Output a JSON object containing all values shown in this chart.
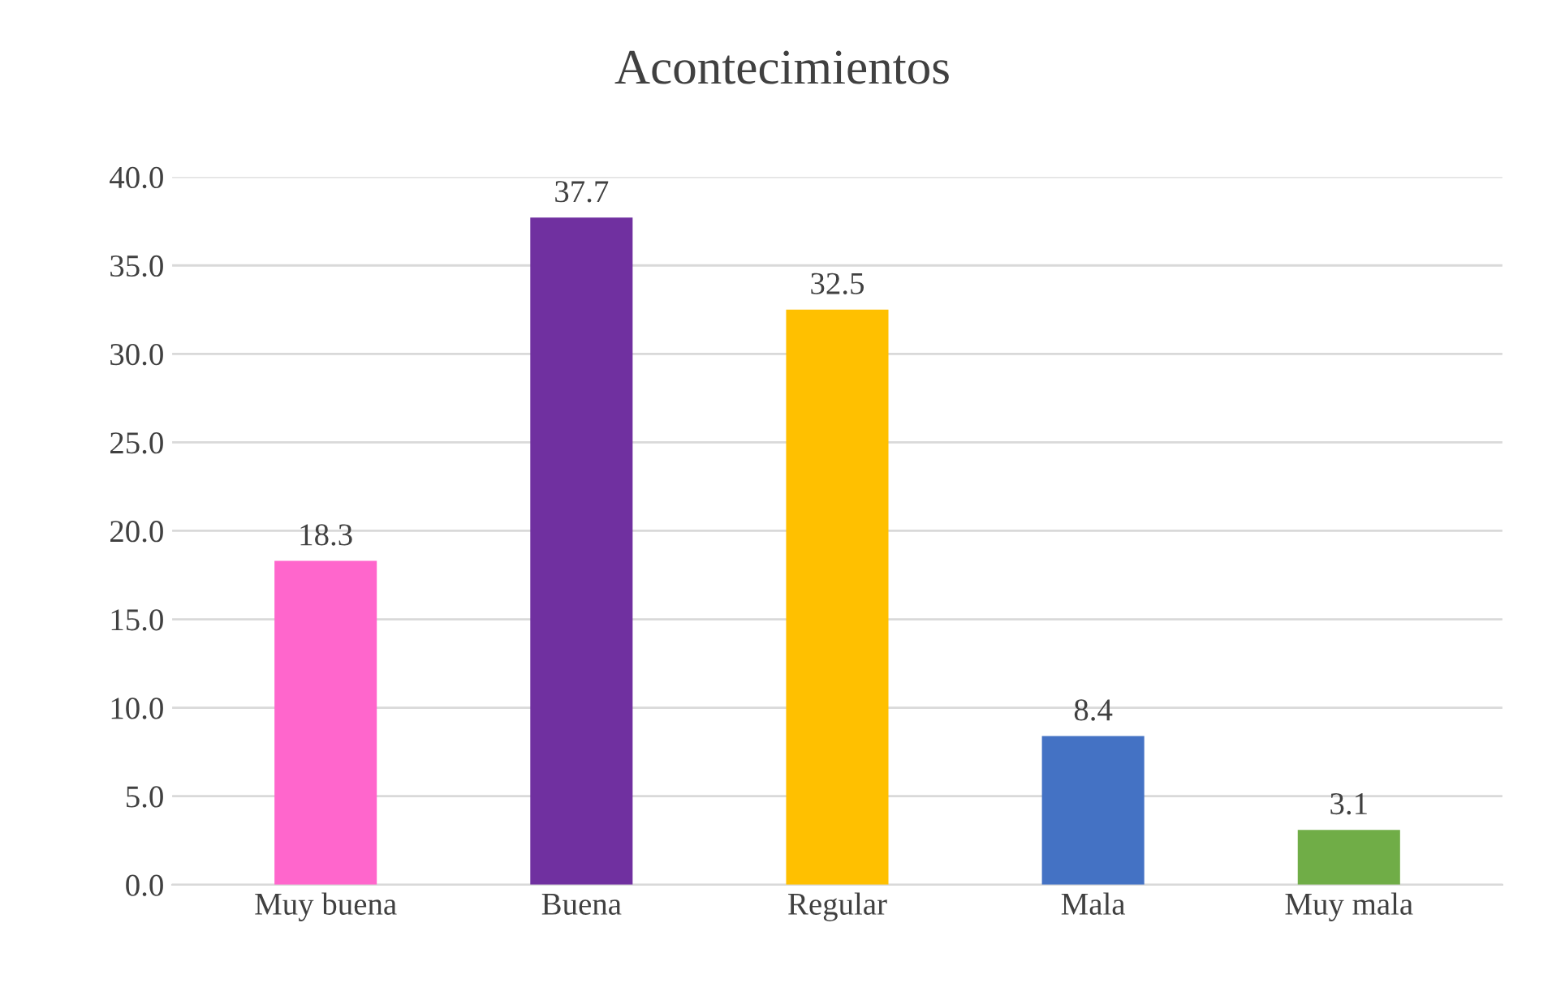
{
  "chart_data": {
    "type": "bar",
    "title": "Acontecimientos",
    "categories": [
      "Muy buena",
      "Buena",
      "Regular",
      "Mala",
      "Muy mala"
    ],
    "values": [
      18.3,
      37.7,
      32.5,
      8.4,
      3.1
    ],
    "colors": [
      "#ff66cc",
      "#7030a0",
      "#ffc000",
      "#4472c4",
      "#70ad47"
    ],
    "ylim": [
      0,
      40
    ],
    "yticks": [
      {
        "value": 0,
        "label": "0.0"
      },
      {
        "value": 5,
        "label": "5.0"
      },
      {
        "value": 10,
        "label": "10.0"
      },
      {
        "value": 15,
        "label": "15.0"
      },
      {
        "value": 20,
        "label": "20.0"
      },
      {
        "value": 25,
        "label": "25.0"
      },
      {
        "value": 30,
        "label": "30.0"
      },
      {
        "value": 35,
        "label": "35.0"
      },
      {
        "value": 40,
        "label": "40.0"
      }
    ],
    "grid": "y",
    "data_labels": true
  }
}
